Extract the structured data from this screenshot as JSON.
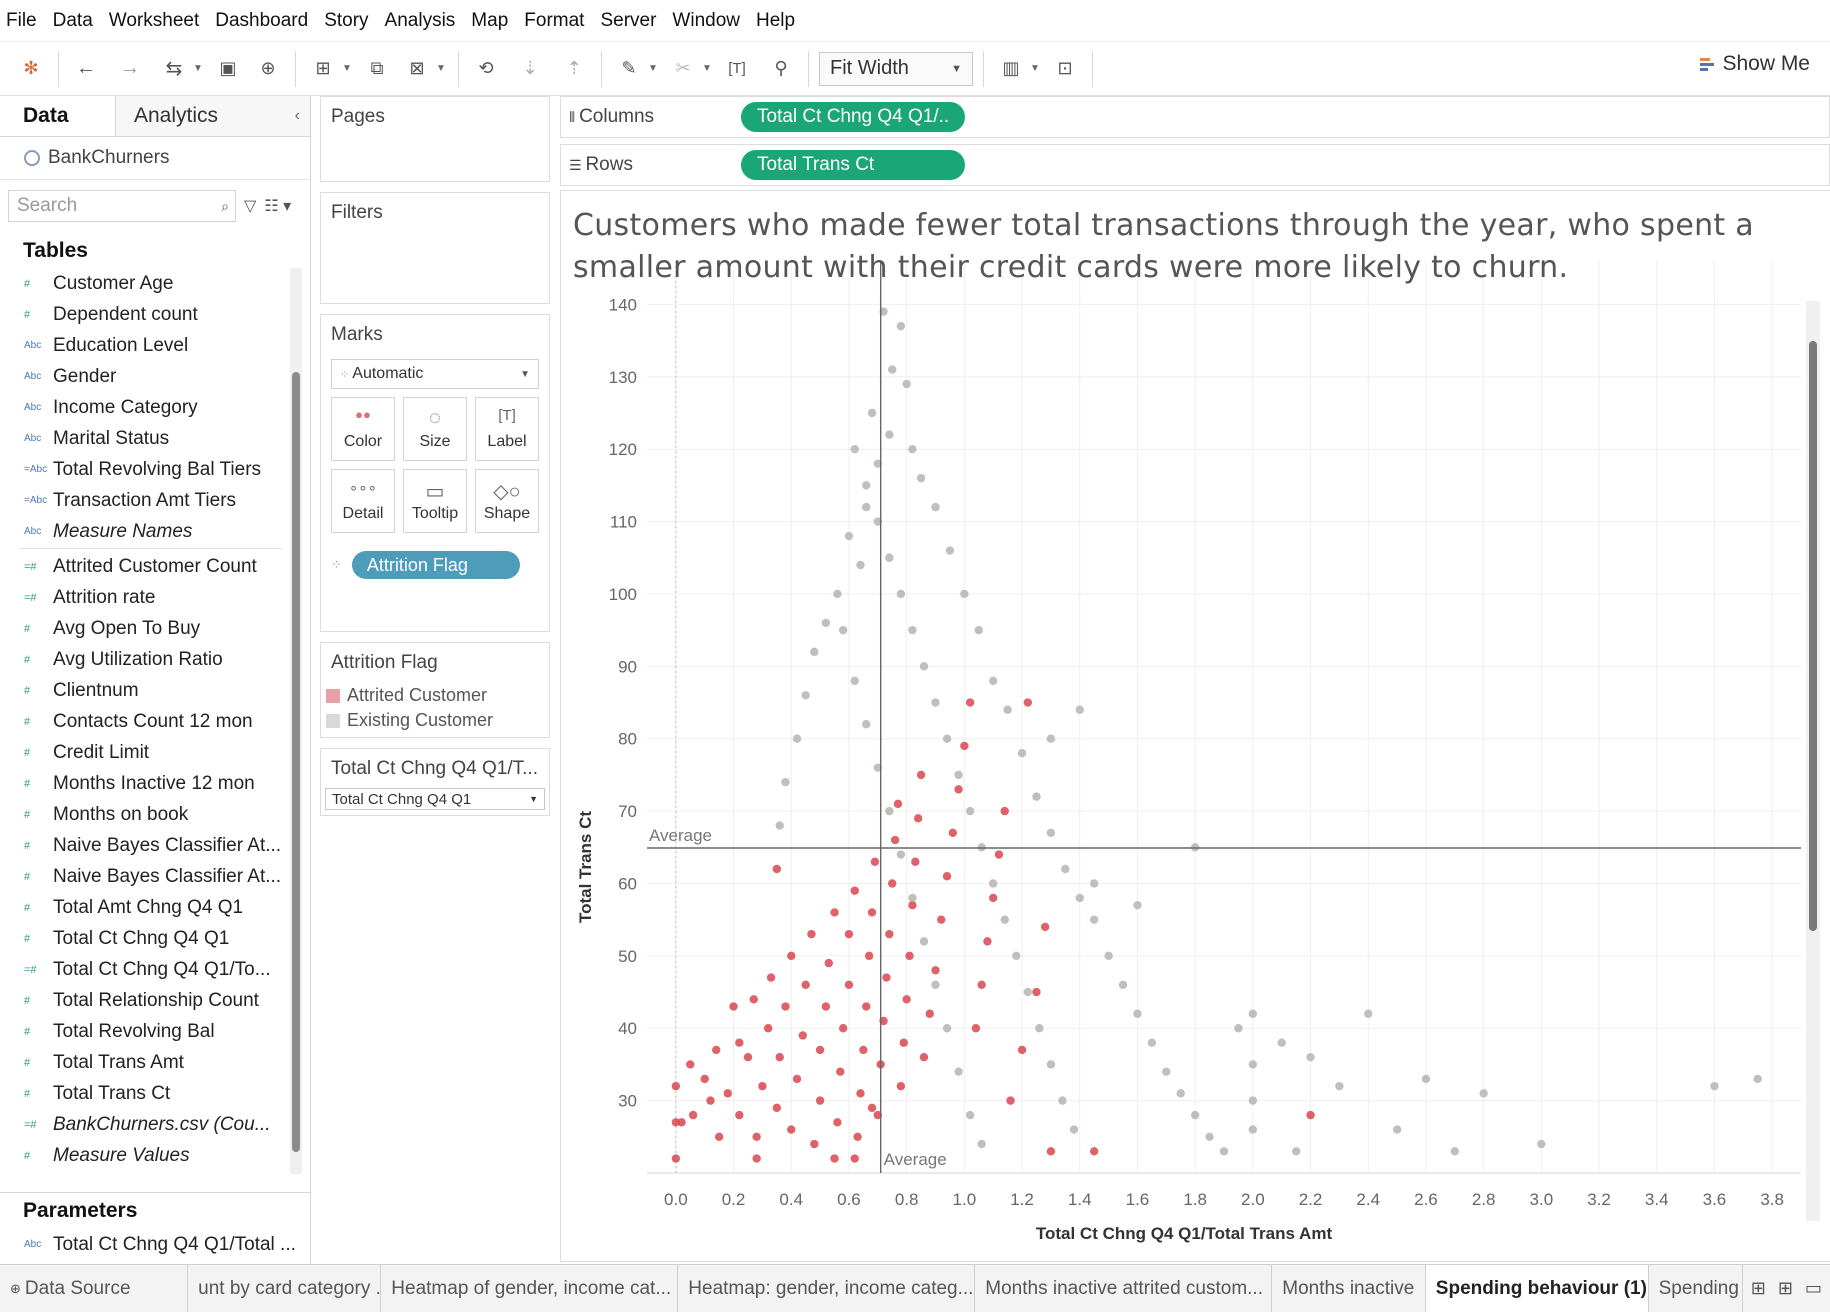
{
  "menu": [
    "File",
    "Data",
    "Worksheet",
    "Dashboard",
    "Story",
    "Analysis",
    "Map",
    "Format",
    "Server",
    "Window",
    "Help"
  ],
  "toolbar": {
    "fit_label": "Fit Width",
    "show_me": "Show Me",
    "icons": [
      "tableau-logo-icon",
      "undo-icon",
      "redo-icon",
      "replay-icon",
      "save-icon",
      "new-datasource-icon",
      "new-worksheet-icon",
      "duplicate-icon",
      "clear-sheet-icon",
      "swap-icon",
      "sort-ascending-icon",
      "sort-descending-icon",
      "highlight-icon",
      "group-icon",
      "show-labels-icon",
      "pin-icon",
      "view-cards-icon",
      "presentation-icon"
    ]
  },
  "datapane": {
    "tab_data": "Data",
    "tab_analytics": "Analytics",
    "datasource": "BankChurners",
    "search_placeholder": "Search",
    "tables_label": "Tables",
    "dimensions": [
      {
        "label": "Customer Age",
        "type": "#"
      },
      {
        "label": "Dependent count",
        "type": "#"
      },
      {
        "label": "Education Level",
        "type": "Abc"
      },
      {
        "label": "Gender",
        "type": "Abc"
      },
      {
        "label": "Income Category",
        "type": "Abc"
      },
      {
        "label": "Marital Status",
        "type": "Abc"
      },
      {
        "label": "Total Revolving Bal Tiers",
        "type": "=Abc"
      },
      {
        "label": "Transaction Amt Tiers",
        "type": "=Abc"
      },
      {
        "label": "Measure Names",
        "type": "Abc",
        "italic": true
      }
    ],
    "measures": [
      {
        "label": "Attrited Customer Count",
        "type": "=#"
      },
      {
        "label": "Attrition rate",
        "type": "=#"
      },
      {
        "label": "Avg Open To Buy",
        "type": "#"
      },
      {
        "label": "Avg Utilization Ratio",
        "type": "#"
      },
      {
        "label": "Clientnum",
        "type": "#"
      },
      {
        "label": "Contacts Count 12 mon",
        "type": "#"
      },
      {
        "label": "Credit Limit",
        "type": "#"
      },
      {
        "label": "Months Inactive 12 mon",
        "type": "#"
      },
      {
        "label": "Months on book",
        "type": "#"
      },
      {
        "label": "Naive Bayes Classifier At...",
        "type": "#"
      },
      {
        "label": "Naive Bayes Classifier At...",
        "type": "#"
      },
      {
        "label": "Total Amt Chng Q4 Q1",
        "type": "#"
      },
      {
        "label": "Total Ct Chng Q4 Q1",
        "type": "#"
      },
      {
        "label": "Total Ct Chng Q4 Q1/To...",
        "type": "=#"
      },
      {
        "label": "Total Relationship Count",
        "type": "#"
      },
      {
        "label": "Total Revolving Bal",
        "type": "#"
      },
      {
        "label": "Total Trans Amt",
        "type": "#"
      },
      {
        "label": "Total Trans Ct",
        "type": "#"
      },
      {
        "label": "BankChurners.csv (Cou...",
        "type": "=#",
        "italic": true
      },
      {
        "label": "Measure Values",
        "type": "#",
        "italic": true
      }
    ],
    "parameters_label": "Parameters",
    "parameter_item": {
      "label": "Total Ct Chng Q4 Q1/Total ...",
      "type": "Abc"
    }
  },
  "cards": {
    "pages": "Pages",
    "filters": "Filters",
    "marks": "Marks",
    "marks_type": "Automatic",
    "mark_buttons": [
      {
        "name": "color-button",
        "icon": "color-icon",
        "label": "Color"
      },
      {
        "name": "size-button",
        "icon": "size-icon",
        "label": "Size"
      },
      {
        "name": "label-button",
        "icon": "label-icon",
        "label": "Label"
      },
      {
        "name": "detail-button",
        "icon": "detail-icon",
        "label": "Detail"
      },
      {
        "name": "tooltip-button",
        "icon": "tooltip-icon",
        "label": "Tooltip"
      },
      {
        "name": "shape-button",
        "icon": "shape-icon",
        "label": "Shape"
      }
    ],
    "color_pill": "Attrition Flag",
    "legend_title": "Attrition Flag",
    "legend": [
      {
        "label": "Attrited Customer",
        "color": "#e8a1a8"
      },
      {
        "label": "Existing Customer",
        "color": "#dcd8d6"
      }
    ],
    "param_title": "Total Ct Chng Q4 Q1/T...",
    "param_value": "Total Ct Chng Q4 Q1"
  },
  "shelves": {
    "columns_label": "Columns",
    "columns_pill": "Total Ct Chng Q4 Q1/..",
    "rows_label": "Rows",
    "rows_pill": "Total Trans Ct"
  },
  "viz": {
    "title": "Customers who made fewer total transactions through the year,  who spent a smaller amount with their credit cards were more likely to churn."
  },
  "chart_data": {
    "type": "scatter",
    "xlabel": "Total Ct Chng Q4 Q1/Total Trans Amt",
    "ylabel": "Total Trans Ct",
    "xticks": [
      "0.0",
      "0.2",
      "0.4",
      "0.6",
      "0.8",
      "1.0",
      "1.2",
      "1.4",
      "1.6",
      "1.8",
      "2.0",
      "2.2",
      "2.4",
      "2.6",
      "2.8",
      "3.0",
      "3.2",
      "3.4",
      "3.6",
      "3.8"
    ],
    "yticks": [
      "30",
      "40",
      "50",
      "60",
      "70",
      "80",
      "90",
      "100",
      "110",
      "120",
      "130",
      "140"
    ],
    "xlim": [
      -0.1,
      3.9
    ],
    "ylim": [
      20,
      146
    ],
    "reference_lines": [
      {
        "axis": "y",
        "value": 64.9,
        "label": "Average"
      },
      {
        "axis": "x",
        "value": 0.71,
        "label": "Average"
      }
    ],
    "colors": {
      "attrited": "#d9454f",
      "existing": "#b9b2b0"
    },
    "series": [
      {
        "name": "Attrited Customer",
        "color": "#d9454f",
        "points": [
          [
            0.0,
            22
          ],
          [
            0.0,
            27
          ],
          [
            0.0,
            32
          ],
          [
            0.02,
            27
          ],
          [
            0.05,
            35
          ],
          [
            0.06,
            28
          ],
          [
            0.1,
            33
          ],
          [
            0.12,
            30
          ],
          [
            0.14,
            37
          ],
          [
            0.15,
            25
          ],
          [
            0.18,
            31
          ],
          [
            0.2,
            43
          ],
          [
            0.22,
            28
          ],
          [
            0.25,
            36
          ],
          [
            0.27,
            44
          ],
          [
            0.28,
            25
          ],
          [
            0.3,
            32
          ],
          [
            0.32,
            40
          ],
          [
            0.33,
            47
          ],
          [
            0.35,
            29
          ],
          [
            0.36,
            36
          ],
          [
            0.38,
            43
          ],
          [
            0.4,
            50
          ],
          [
            0.4,
            26
          ],
          [
            0.42,
            33
          ],
          [
            0.44,
            39
          ],
          [
            0.45,
            46
          ],
          [
            0.47,
            53
          ],
          [
            0.48,
            24
          ],
          [
            0.5,
            30
          ],
          [
            0.5,
            37
          ],
          [
            0.52,
            43
          ],
          [
            0.53,
            49
          ],
          [
            0.55,
            56
          ],
          [
            0.56,
            27
          ],
          [
            0.57,
            34
          ],
          [
            0.58,
            40
          ],
          [
            0.6,
            46
          ],
          [
            0.6,
            53
          ],
          [
            0.62,
            59
          ],
          [
            0.63,
            25
          ],
          [
            0.64,
            31
          ],
          [
            0.65,
            37
          ],
          [
            0.66,
            43
          ],
          [
            0.67,
            50
          ],
          [
            0.68,
            56
          ],
          [
            0.69,
            63
          ],
          [
            0.7,
            28
          ],
          [
            0.71,
            35
          ],
          [
            0.72,
            41
          ],
          [
            0.73,
            47
          ],
          [
            0.74,
            53
          ],
          [
            0.75,
            60
          ],
          [
            0.76,
            66
          ],
          [
            0.77,
            71
          ],
          [
            0.78,
            32
          ],
          [
            0.79,
            38
          ],
          [
            0.8,
            44
          ],
          [
            0.81,
            50
          ],
          [
            0.82,
            57
          ],
          [
            0.83,
            63
          ],
          [
            0.84,
            69
          ],
          [
            0.85,
            75
          ],
          [
            0.86,
            36
          ],
          [
            0.88,
            42
          ],
          [
            0.9,
            48
          ],
          [
            0.92,
            55
          ],
          [
            0.94,
            61
          ],
          [
            0.96,
            67
          ],
          [
            0.98,
            73
          ],
          [
            1.0,
            79
          ],
          [
            1.02,
            85
          ],
          [
            1.04,
            40
          ],
          [
            1.06,
            46
          ],
          [
            1.08,
            52
          ],
          [
            1.1,
            58
          ],
          [
            1.12,
            64
          ],
          [
            1.14,
            70
          ],
          [
            1.16,
            30
          ],
          [
            1.2,
            37
          ],
          [
            1.25,
            45
          ],
          [
            1.3,
            23
          ],
          [
            1.45,
            23
          ],
          [
            0.55,
            22
          ],
          [
            0.62,
            22
          ],
          [
            0.68,
            29
          ],
          [
            0.35,
            62
          ],
          [
            0.22,
            38
          ],
          [
            0.28,
            22
          ],
          [
            1.22,
            85
          ],
          [
            1.28,
            54
          ],
          [
            2.2,
            28
          ]
        ]
      },
      {
        "name": "Existing Customer",
        "color": "#b9b2b0",
        "points": [
          [
            0.72,
            139
          ],
          [
            0.78,
            137
          ],
          [
            0.8,
            129
          ],
          [
            0.75,
            131
          ],
          [
            0.68,
            125
          ],
          [
            0.7,
            118
          ],
          [
            0.74,
            122
          ],
          [
            0.82,
            120
          ],
          [
            0.85,
            116
          ],
          [
            0.66,
            112
          ],
          [
            0.6,
            108
          ],
          [
            0.64,
            104
          ],
          [
            0.56,
            100
          ],
          [
            0.52,
            96
          ],
          [
            0.48,
            92
          ],
          [
            0.45,
            86
          ],
          [
            0.42,
            80
          ],
          [
            0.38,
            74
          ],
          [
            0.36,
            68
          ],
          [
            0.9,
            112
          ],
          [
            0.95,
            106
          ],
          [
            1.0,
            100
          ],
          [
            1.05,
            95
          ],
          [
            1.1,
            88
          ],
          [
            1.15,
            84
          ],
          [
            1.2,
            78
          ],
          [
            1.25,
            72
          ],
          [
            1.3,
            67
          ],
          [
            1.35,
            62
          ],
          [
            1.4,
            58
          ],
          [
            1.45,
            55
          ],
          [
            1.5,
            50
          ],
          [
            1.55,
            46
          ],
          [
            1.6,
            42
          ],
          [
            1.65,
            38
          ],
          [
            1.7,
            34
          ],
          [
            1.75,
            31
          ],
          [
            1.8,
            28
          ],
          [
            1.85,
            25
          ],
          [
            1.9,
            23
          ],
          [
            1.95,
            40
          ],
          [
            2.0,
            42
          ],
          [
            2.0,
            35
          ],
          [
            2.0,
            30
          ],
          [
            2.0,
            26
          ],
          [
            2.1,
            38
          ],
          [
            2.2,
            36
          ],
          [
            2.3,
            32
          ],
          [
            2.4,
            42
          ],
          [
            2.5,
            26
          ],
          [
            2.8,
            31
          ],
          [
            3.0,
            24
          ],
          [
            3.6,
            32
          ],
          [
            3.75,
            33
          ],
          [
            1.8,
            65
          ],
          [
            1.6,
            57
          ],
          [
            1.45,
            60
          ],
          [
            1.3,
            80
          ],
          [
            1.4,
            84
          ],
          [
            0.58,
            95
          ],
          [
            0.62,
            88
          ],
          [
            0.66,
            82
          ],
          [
            0.7,
            76
          ],
          [
            0.74,
            70
          ],
          [
            0.78,
            64
          ],
          [
            0.82,
            58
          ],
          [
            0.86,
            52
          ],
          [
            0.9,
            46
          ],
          [
            0.94,
            40
          ],
          [
            0.98,
            34
          ],
          [
            1.02,
            28
          ],
          [
            1.06,
            24
          ],
          [
            0.62,
            120
          ],
          [
            0.66,
            115
          ],
          [
            0.7,
            110
          ],
          [
            0.74,
            105
          ],
          [
            0.78,
            100
          ],
          [
            0.82,
            95
          ],
          [
            0.86,
            90
          ],
          [
            0.9,
            85
          ],
          [
            0.94,
            80
          ],
          [
            0.98,
            75
          ],
          [
            1.02,
            70
          ],
          [
            1.06,
            65
          ],
          [
            1.1,
            60
          ],
          [
            1.14,
            55
          ],
          [
            1.18,
            50
          ],
          [
            1.22,
            45
          ],
          [
            1.26,
            40
          ],
          [
            1.3,
            35
          ],
          [
            1.34,
            30
          ],
          [
            1.38,
            26
          ],
          [
            2.15,
            23
          ],
          [
            2.7,
            23
          ],
          [
            2.6,
            33
          ]
        ]
      }
    ]
  },
  "sheet_tabs": [
    {
      "label": "Data Source",
      "active": false
    },
    {
      "label": "unt by card category ...",
      "active": false
    },
    {
      "label": "Heatmap of gender, income cat...",
      "active": false
    },
    {
      "label": "Heatmap: gender, income categ...",
      "active": false
    },
    {
      "label": "Months inactive attrited custom...",
      "active": false
    },
    {
      "label": "Months inactive",
      "active": false
    },
    {
      "label": "Spending behaviour (1)",
      "active": true
    },
    {
      "label": "Spending",
      "active": false
    }
  ]
}
